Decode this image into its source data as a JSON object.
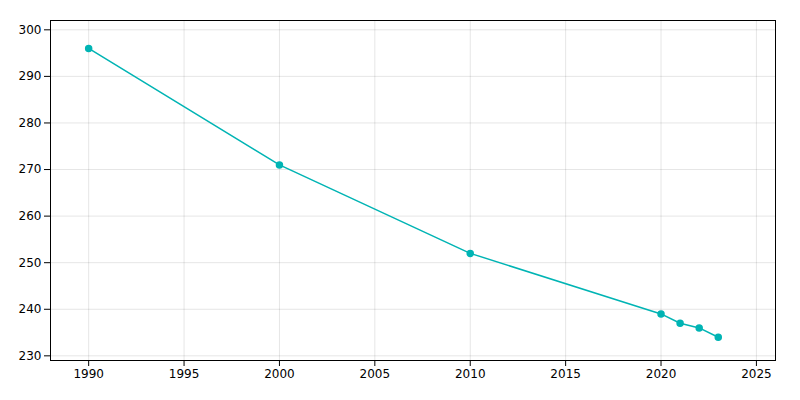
{
  "chart_data": {
    "type": "line",
    "x": [
      1990,
      2000,
      2010,
      2020,
      2021,
      2022,
      2023
    ],
    "values": [
      296,
      271,
      252,
      239,
      237,
      236,
      234
    ],
    "color": "#00b4b4",
    "marker": "circle",
    "xlim": [
      1988,
      2026
    ],
    "ylim": [
      229,
      302
    ],
    "xticks": [
      1990,
      1995,
      2000,
      2005,
      2010,
      2015,
      2020,
      2025
    ],
    "yticks": [
      230,
      240,
      250,
      260,
      270,
      280,
      290,
      300
    ],
    "grid": true
  }
}
